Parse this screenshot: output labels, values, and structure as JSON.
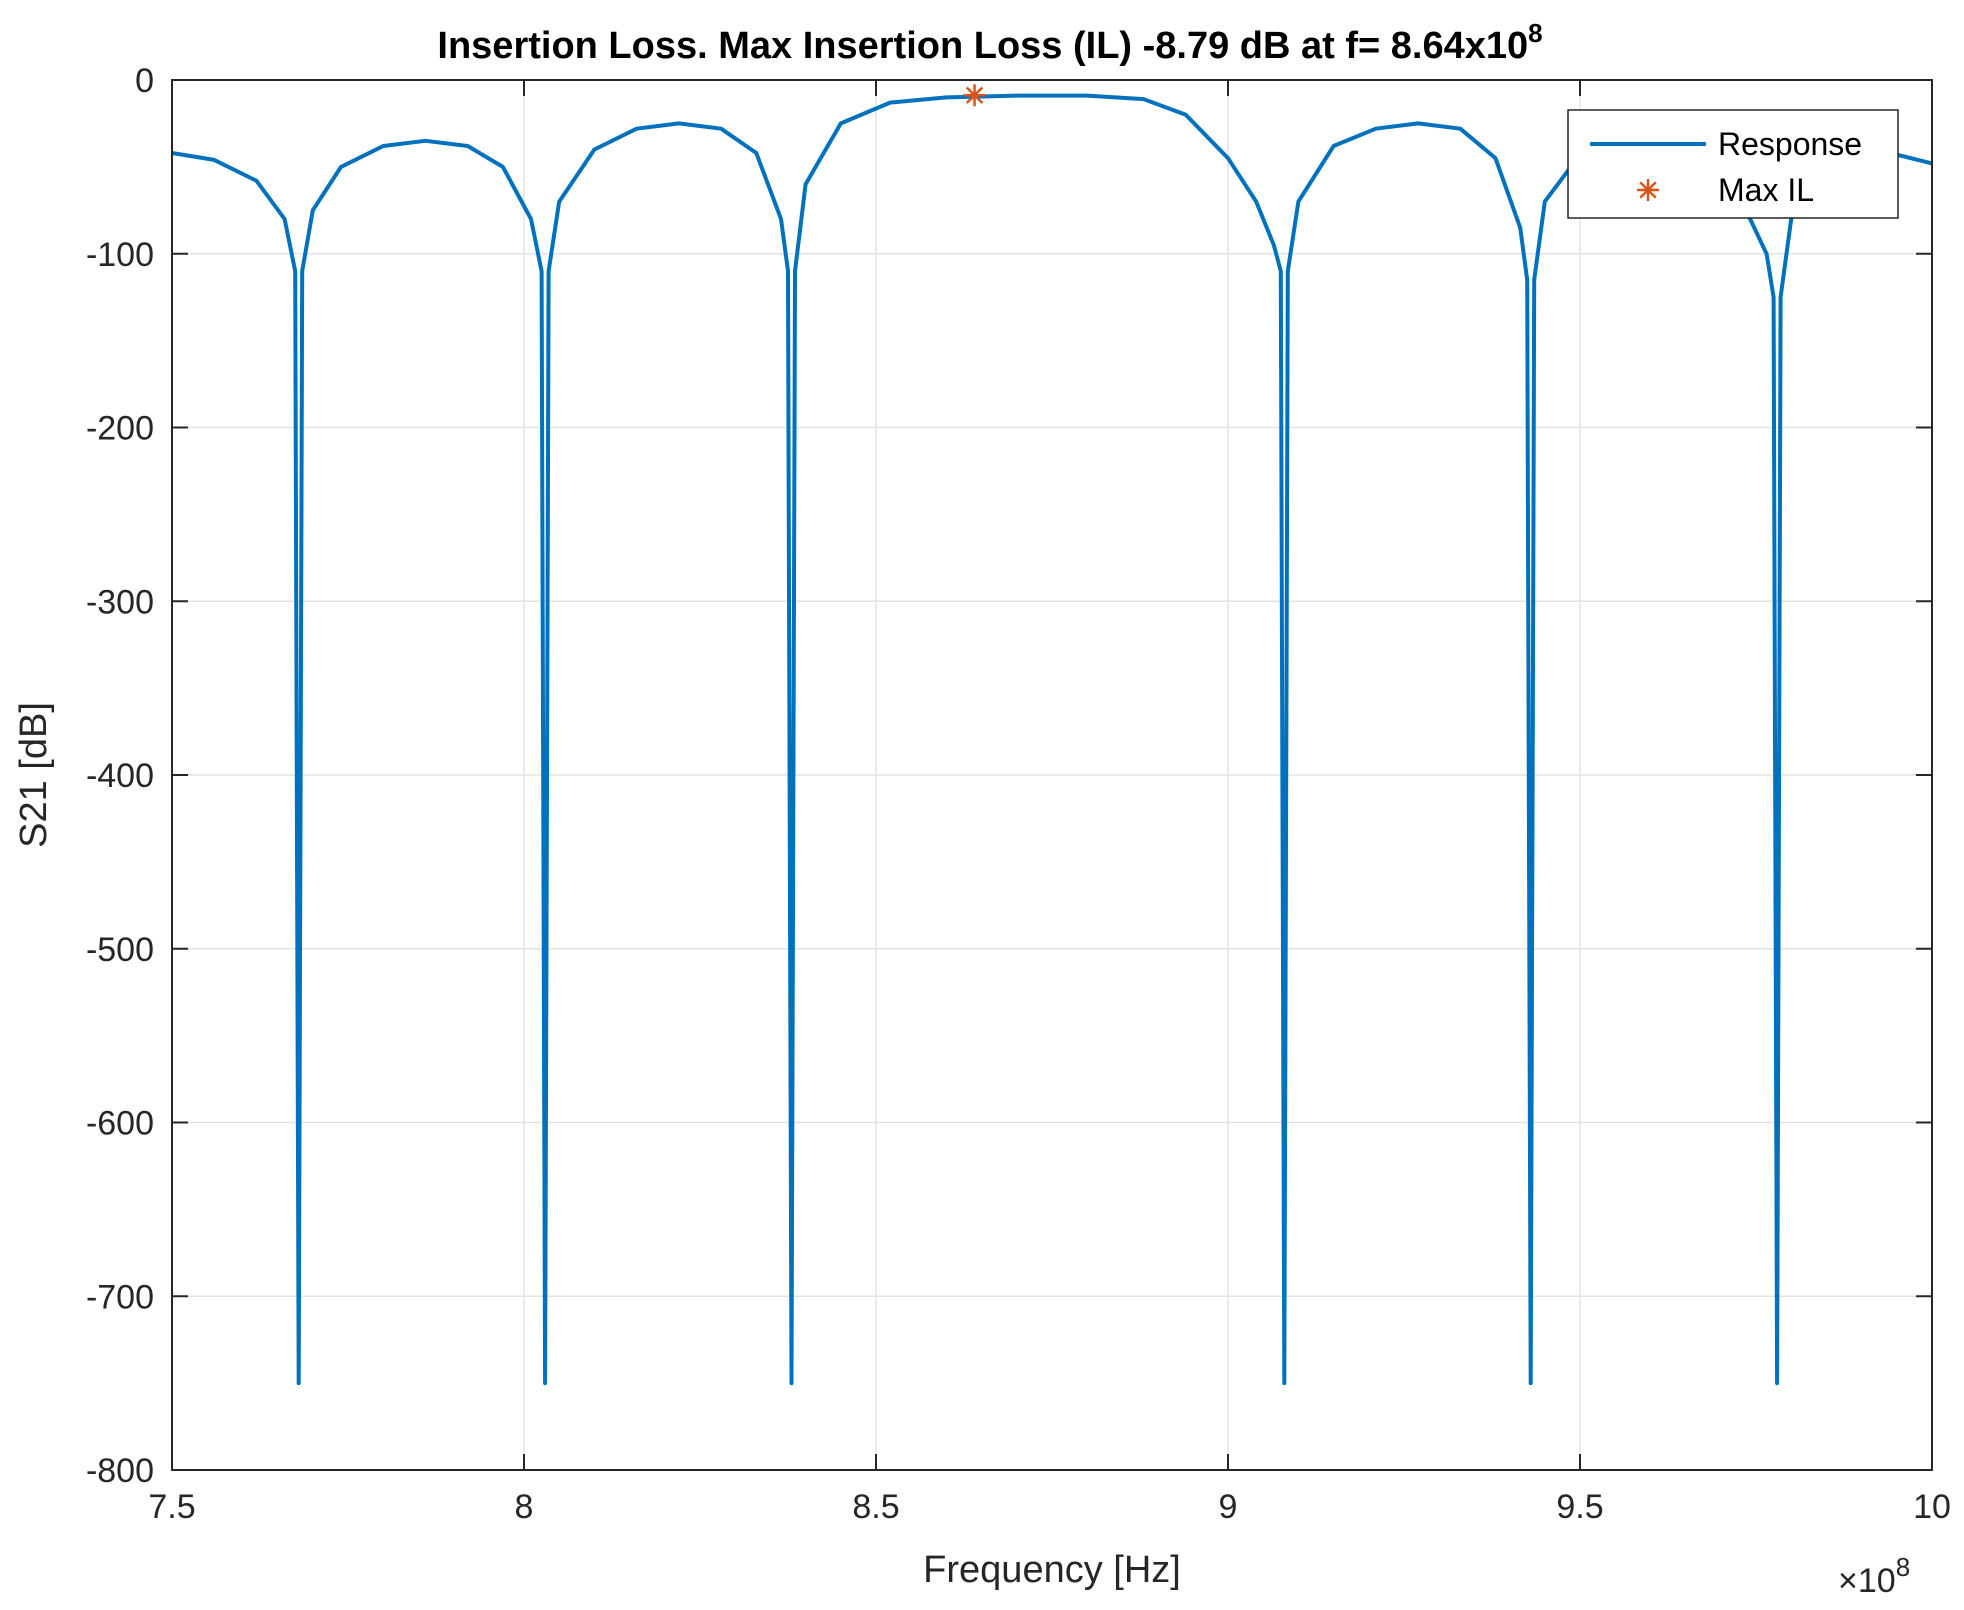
{
  "chart_data": {
    "type": "line",
    "title": "Insertion Loss. Max Insertion Loss (IL) -8.79 dB at f= 8.64x10",
    "title_exponent": "8",
    "xlabel": "Frequency [Hz]",
    "ylabel": "S21 [dB]",
    "x_multiplier_label": "×10",
    "x_multiplier_exponent": "8",
    "xlim": [
      7.5,
      10
    ],
    "ylim": [
      -800,
      0
    ],
    "xticks": [
      7.5,
      8,
      8.5,
      9,
      9.5,
      10
    ],
    "xtick_labels": [
      "7.5",
      "8",
      "8.5",
      "9",
      "9.5",
      "10"
    ],
    "yticks": [
      0,
      -100,
      -200,
      -300,
      -400,
      -500,
      -600,
      -700,
      -800
    ],
    "ytick_labels": [
      "0",
      "-100",
      "-200",
      "-300",
      "-400",
      "-500",
      "-600",
      "-700",
      "-800"
    ],
    "grid": true,
    "legend_position": "top-right",
    "series": [
      {
        "name": "Response",
        "color": "#0072BD",
        "style": "line",
        "x": [
          7.5,
          7.56,
          7.62,
          7.66,
          7.675,
          7.68,
          7.685,
          7.7,
          7.74,
          7.8,
          7.86,
          7.92,
          7.97,
          8.01,
          8.025,
          8.03,
          8.035,
          8.05,
          8.1,
          8.16,
          8.22,
          8.28,
          8.33,
          8.365,
          8.375,
          8.38,
          8.385,
          8.4,
          8.45,
          8.52,
          8.6,
          8.7,
          8.8,
          8.88,
          8.94,
          9.0,
          9.04,
          9.065,
          9.075,
          9.08,
          9.085,
          9.1,
          9.15,
          9.21,
          9.27,
          9.33,
          9.38,
          9.415,
          9.425,
          9.43,
          9.435,
          9.45,
          9.5,
          9.56,
          9.62,
          9.68,
          9.73,
          9.765,
          9.775,
          9.78,
          9.785,
          9.8,
          9.85,
          9.92,
          10.0
        ],
        "y": [
          -42,
          -46,
          -58,
          -80,
          -110,
          -750,
          -110,
          -75,
          -50,
          -38,
          -35,
          -38,
          -50,
          -80,
          -110,
          -750,
          -110,
          -70,
          -40,
          -28,
          -25,
          -28,
          -42,
          -80,
          -110,
          -750,
          -110,
          -60,
          -25,
          -13,
          -10,
          -9,
          -9,
          -11,
          -20,
          -45,
          -70,
          -95,
          -110,
          -750,
          -110,
          -70,
          -38,
          -28,
          -25,
          -28,
          -45,
          -85,
          -115,
          -750,
          -115,
          -70,
          -43,
          -38,
          -42,
          -52,
          -70,
          -100,
          -125,
          -750,
          -125,
          -80,
          -50,
          -40,
          -48
        ]
      },
      {
        "name": "Max IL",
        "color": "#D95319",
        "style": "marker",
        "marker": "asterisk",
        "x": [
          8.64
        ],
        "y": [
          -8.79
        ]
      }
    ]
  }
}
